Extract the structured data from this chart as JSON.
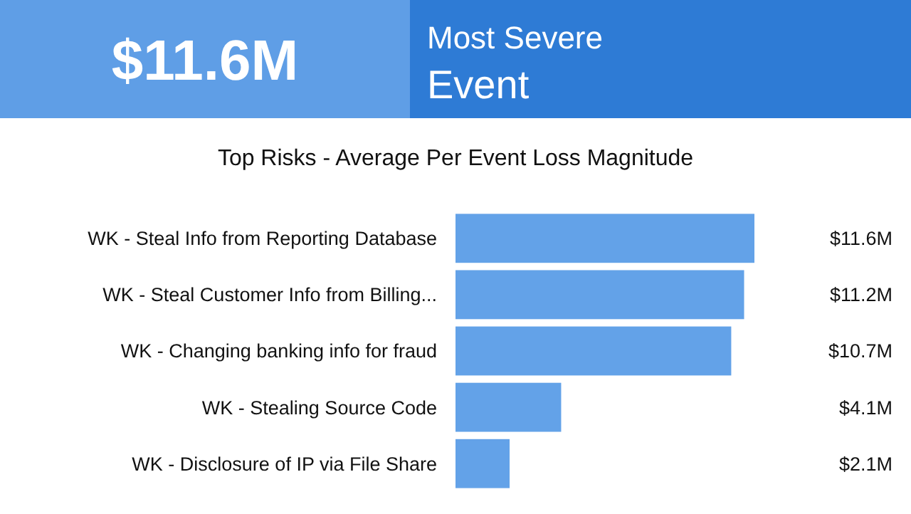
{
  "chart_data": {
    "type": "bar",
    "orientation": "horizontal",
    "title": "Top Risks - Average Per Event Loss Magnitude",
    "annotations": [
      "$11.6M",
      "Most Severe Event"
    ],
    "categories": [
      "WK - Steal Info from Reporting Database",
      "WK - Steal Customer Info from Billing...",
      "WK - Changing banking info for fraud",
      "WK - Stealing Source Code",
      "WK - Disclosure of IP via File Share"
    ],
    "values": [
      11.6,
      11.2,
      10.7,
      4.1,
      2.1
    ],
    "value_labels": [
      "$11.6M",
      "$11.2M",
      "$10.7M",
      "$4.1M",
      "$2.1M"
    ],
    "color": "#63a2e8"
  }
}
